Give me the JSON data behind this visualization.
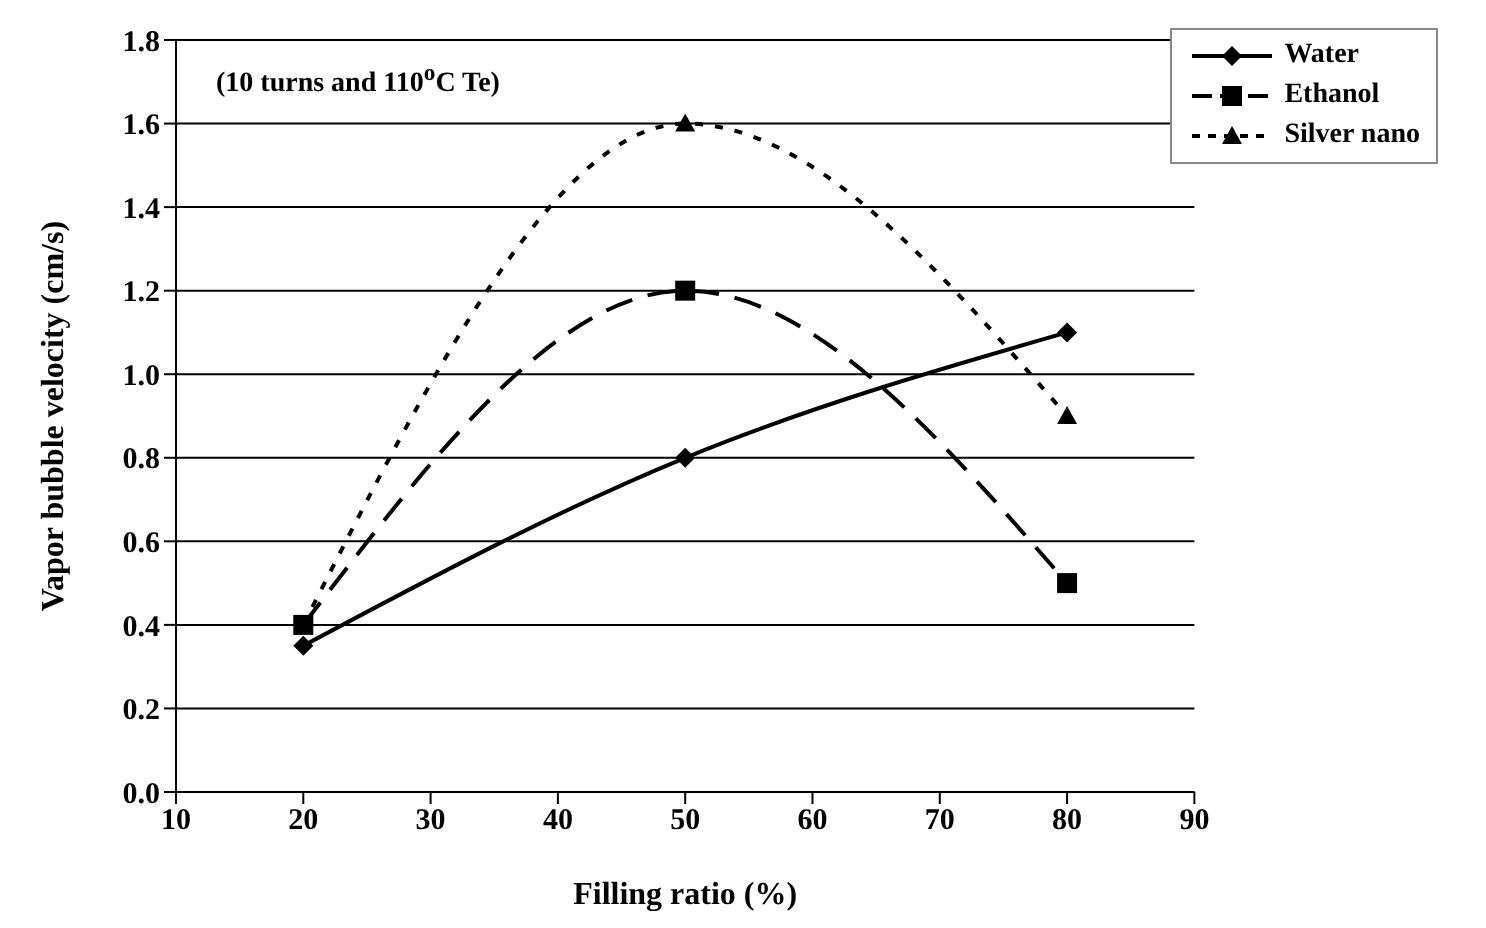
{
  "chart_data": {
    "type": "line",
    "xlabel": "Filling ratio (%)",
    "ylabel": "Vapor bubble velocity (cm/s)",
    "annotations": [
      "(10 turns and 110$^{o}$C Te)"
    ],
    "x": [
      20,
      50,
      80
    ],
    "series": [
      {
        "name": "Water",
        "color": "#000000",
        "values": [
          0.35,
          0.8,
          1.1
        ],
        "marker": "diamond",
        "line_style": "solid"
      },
      {
        "name": "Ethanol",
        "color": "#000000",
        "values": [
          0.4,
          1.2,
          0.5
        ],
        "marker": "square",
        "line_style": "dashed"
      },
      {
        "name": "Silver nano",
        "color": "#000000",
        "values": [
          0.4,
          1.6,
          0.9
        ],
        "marker": "triangle",
        "line_style": "dotted"
      }
    ],
    "xlim": [
      10,
      90
    ],
    "xticks": [
      10,
      20,
      30,
      40,
      50,
      60,
      70,
      80,
      90
    ],
    "ylim": [
      0,
      1.8
    ],
    "yticks": [
      {
        "value": 0,
        "label": "0.0"
      },
      0.2,
      0.4,
      0.6,
      0.8,
      {
        "value": 1,
        "label": "1.0"
      },
      1.2,
      1.4,
      1.6,
      1.8
    ],
    "grid": "y",
    "legend": "top right"
  }
}
